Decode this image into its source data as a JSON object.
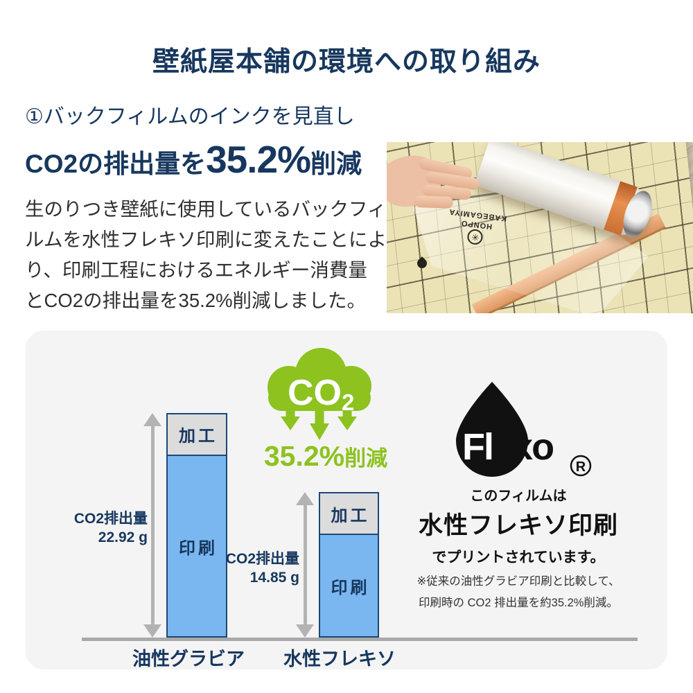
{
  "page": {
    "title": "壁紙屋本舗の環境への取り組み"
  },
  "intro": {
    "heading": "①バックフィルムのインクを見直し",
    "subheading": {
      "prefix": "CO2の排出量を",
      "value": "35.2%",
      "suffix": "削減"
    },
    "body_lines": [
      "生のりつき壁紙に使用しているバックフィ",
      "ルムを水性フレキソ印刷に変えたことによ",
      "り、印刷工程におけるエネルギー消費量",
      "とCO2の排出量を35.2%削減しました。"
    ]
  },
  "photo": {
    "description": "生のりつき壁紙のバックフィルムを手でめくっている写真（白いロールと方眼入りフィルム）",
    "stamp_line1": "KABEGAMIYA",
    "stamp_line2": "HONPO"
  },
  "chart_data": {
    "type": "bar",
    "stacked": true,
    "categories": [
      "油性グラビア",
      "水性フレキソ"
    ],
    "series": [
      {
        "name": "加工",
        "values": [
          4.25,
          4.25
        ],
        "color": "#dcdcdc"
      },
      {
        "name": "印刷",
        "values": [
          18.67,
          10.6
        ],
        "color": "#7ab6f0"
      }
    ],
    "totals": [
      {
        "label": "CO2排出量",
        "value": "22.92 g"
      },
      {
        "label": "CO2排出量",
        "value": "14.85 g"
      }
    ],
    "unit": "g",
    "ylim": [
      0,
      24
    ],
    "axis_style": "baseline only, no gridlines, double-headed gray arrows mark bar heights",
    "annotation": "35.2%削減"
  },
  "badge": {
    "co2_main": "CO",
    "co2_sub": "2",
    "reduction_value": "35.2%",
    "reduction_suffix": "削減",
    "color": "#8dc21f"
  },
  "flexo": {
    "logo_fl": "Fl",
    "logo_exo": "exo",
    "registered": "R",
    "line1": "このフィルムは",
    "line2": "水性フレキソ印刷",
    "line3": "でプリントされています。",
    "note_line1": "※従来の油性グラビア印刷と比較して、",
    "note_line2": "印刷時の CO2 排出量を約35.2%削減。"
  },
  "colors": {
    "navy": "#17375e",
    "green": "#8dc21f",
    "bar_blue": "#7ab6f0",
    "bar_border": "#1a4876",
    "segment_gray": "#dcdcdc",
    "panel_bg": "#f4f4f4",
    "arrow_gray": "#b3b3b3",
    "baseline_gray": "#a9a9a9",
    "text_dark": "#2f2f2f"
  }
}
